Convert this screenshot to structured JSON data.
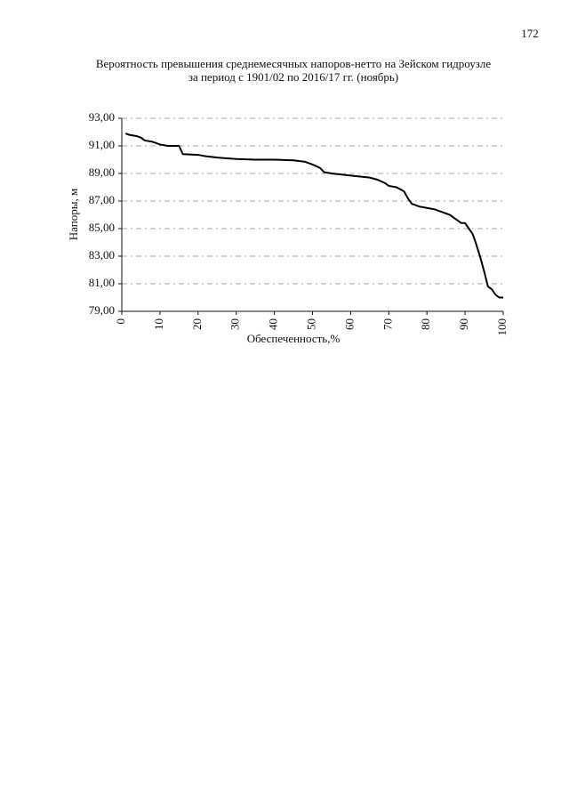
{
  "page_number": "172",
  "chart_data": {
    "type": "line",
    "title": "Вероятность превышения среднемесячных напоров-нетто на Зейском гидроузле",
    "subtitle": "за период с 1901/02 по 2016/17 гг. (ноябрь)",
    "xlabel": "Обеспеченность,%",
    "ylabel": "Напоры, м",
    "x": [
      1,
      2,
      4,
      5,
      6,
      8,
      10,
      12,
      15,
      16,
      20,
      22,
      25,
      30,
      35,
      40,
      45,
      48,
      50,
      52,
      53,
      55,
      60,
      65,
      67,
      69,
      70,
      72,
      74,
      75,
      76,
      78,
      80,
      82,
      84,
      86,
      88,
      89,
      90,
      91,
      92,
      93,
      94,
      95,
      96,
      97,
      98,
      99,
      100
    ],
    "series": [
      {
        "color": "#000000",
        "values": [
          91.9,
          91.8,
          91.7,
          91.6,
          91.4,
          91.3,
          91.1,
          91.0,
          91.0,
          90.4,
          90.35,
          90.25,
          90.15,
          90.05,
          90.0,
          90.0,
          89.95,
          89.85,
          89.65,
          89.4,
          89.1,
          89.0,
          88.85,
          88.7,
          88.55,
          88.3,
          88.1,
          88.0,
          87.7,
          87.2,
          86.8,
          86.6,
          86.5,
          86.4,
          86.2,
          86.0,
          85.6,
          85.4,
          85.4,
          85.0,
          84.6,
          83.8,
          82.9,
          81.9,
          80.8,
          80.6,
          80.2,
          80.0,
          80.0
        ]
      }
    ],
    "xlim": [
      0,
      100
    ],
    "xticks": [
      0,
      10,
      20,
      30,
      40,
      50,
      60,
      70,
      80,
      90,
      100
    ],
    "ylim": [
      79,
      93
    ],
    "yticks": [
      {
        "value": 79,
        "label": "79,00"
      },
      {
        "value": 81,
        "label": "81,00"
      },
      {
        "value": 83,
        "label": "83,00"
      },
      {
        "value": 85,
        "label": "85,00"
      },
      {
        "value": 87,
        "label": "87,00"
      },
      {
        "value": 89,
        "label": "89,00"
      },
      {
        "value": 91,
        "label": "91,00"
      },
      {
        "value": 93,
        "label": "93,00"
      }
    ],
    "grid": true
  }
}
